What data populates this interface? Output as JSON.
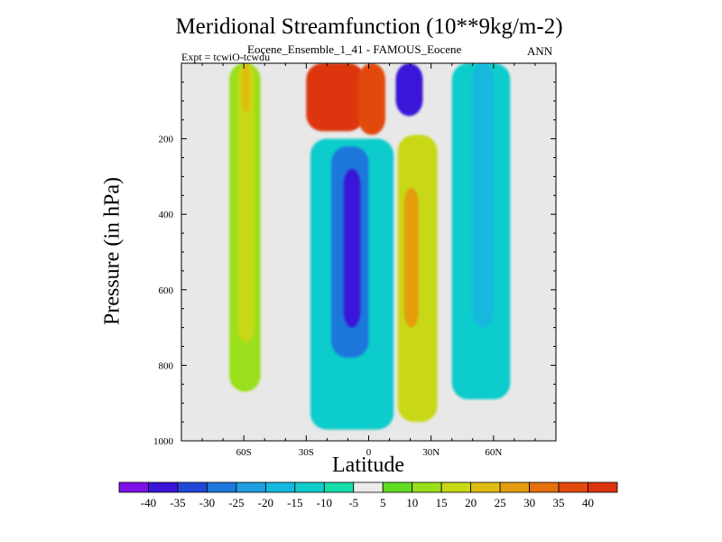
{
  "chart_data": {
    "type": "contour",
    "title": "Meridional Streamfunction (10**9kg/m-2)",
    "subtitle": "Eocene_Ensemble_1_41 - FAMOUS_Eocene",
    "experiment": "Expt = tcwiO-tcwdu",
    "season": "ANN",
    "xlabel": "Latitude",
    "ylabel": "Pressure (in hPa)",
    "xlim": [
      -90,
      90
    ],
    "ylim": [
      1000,
      0
    ],
    "x_ticks": [
      -60,
      -30,
      0,
      30,
      60
    ],
    "x_tick_labels": [
      "60S",
      "30S",
      "0",
      "30N",
      "60N"
    ],
    "y_ticks": [
      200,
      400,
      600,
      800,
      1000
    ],
    "y_tick_labels": [
      "200",
      "400",
      "600",
      "800",
      "1000"
    ],
    "colorbar": {
      "levels": [
        -40,
        -35,
        -30,
        -25,
        -20,
        -15,
        -10,
        -5,
        5,
        10,
        15,
        20,
        25,
        30,
        35,
        40
      ],
      "labels": [
        "-40",
        "-35",
        "-30",
        "-25",
        "-20",
        "-15",
        "-10",
        "-5",
        "5",
        "10",
        "15",
        "20",
        "25",
        "30",
        "35",
        "40"
      ],
      "colors": [
        "#7d11e6",
        "#3b15d8",
        "#2247d6",
        "#1f77db",
        "#1f9ee0",
        "#14b8de",
        "#10cccc",
        "#16ddaa",
        "#ececec",
        "#60dd22",
        "#9ae01a",
        "#c8d815",
        "#e0bd10",
        "#e59d10",
        "#e5700e",
        "#e24a0d",
        "#dd3410"
      ]
    },
    "missing_color": "#e8e8e8",
    "cells": [
      {
        "lat_range": [
          -67,
          -52
        ],
        "p_range": [
          0,
          870
        ],
        "value": 12
      },
      {
        "lat_range": [
          -63,
          -55
        ],
        "p_range": [
          0,
          740
        ],
        "value": 16
      },
      {
        "lat_range": [
          -61,
          -57
        ],
        "p_range": [
          0,
          130
        ],
        "value": 20
      },
      {
        "lat_range": [
          -30,
          -2
        ],
        "p_range": [
          0,
          180
        ],
        "value": 40
      },
      {
        "lat_range": [
          -5,
          8
        ],
        "p_range": [
          0,
          190
        ],
        "value": 38
      },
      {
        "lat_range": [
          13,
          26
        ],
        "p_range": [
          0,
          140
        ],
        "value": -38
      },
      {
        "lat_range": [
          -28,
          12
        ],
        "p_range": [
          200,
          970
        ],
        "value": -15
      },
      {
        "lat_range": [
          -18,
          0
        ],
        "p_range": [
          220,
          780
        ],
        "value": -30
      },
      {
        "lat_range": [
          -12,
          -4
        ],
        "p_range": [
          280,
          700
        ],
        "value": -40
      },
      {
        "lat_range": [
          14,
          33
        ],
        "p_range": [
          190,
          950
        ],
        "value": 18
      },
      {
        "lat_range": [
          17,
          24
        ],
        "p_range": [
          330,
          700
        ],
        "value": 28
      },
      {
        "lat_range": [
          40,
          68
        ],
        "p_range": [
          0,
          890
        ],
        "value": -12
      },
      {
        "lat_range": [
          50,
          60
        ],
        "p_range": [
          0,
          700
        ],
        "value": -18
      }
    ]
  }
}
